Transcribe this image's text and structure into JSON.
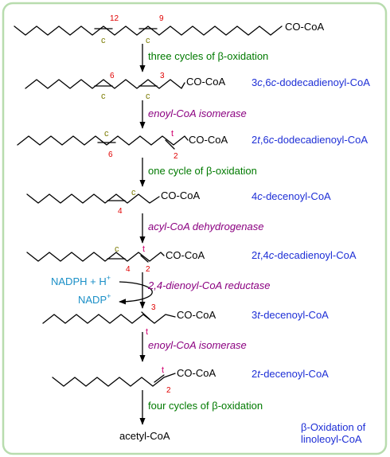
{
  "molecules": [
    {
      "coa": "CO-CoA",
      "numbers": [
        "12",
        "9"
      ],
      "marks": [
        "c",
        "c"
      ],
      "name": {
        "pre": "",
        "italic": "",
        "post": ""
      }
    },
    {
      "coa": "CO-CoA",
      "numbers": [
        "6",
        "3"
      ],
      "marks": [
        "c",
        "c"
      ],
      "name": {
        "pre": "3",
        "italic": "c",
        "mid": ",6",
        "italic2": "c",
        "post": "-dodecadienoyl-CoA"
      }
    },
    {
      "coa": "CO-CoA",
      "numbers": [
        "6",
        "2"
      ],
      "marks": [
        "c",
        "t"
      ],
      "name": {
        "pre": "2",
        "italic": "t",
        "mid": ",6",
        "italic2": "c",
        "post": "-dodecadienoyl-CoA"
      }
    },
    {
      "coa": "CO-CoA",
      "numbers": [
        "4"
      ],
      "marks": [
        "c"
      ],
      "name": {
        "pre": "4",
        "italic": "c",
        "mid": "",
        "italic2": "",
        "post": "-decenoyl-CoA"
      }
    },
    {
      "coa": "CO-CoA",
      "numbers": [
        "4",
        "2"
      ],
      "marks": [
        "c",
        "t"
      ],
      "name": {
        "pre": "2",
        "italic": "t",
        "mid": ",4",
        "italic2": "c",
        "post": "-decadienoyl-CoA"
      }
    },
    {
      "coa": "CO-CoA",
      "numbers": [
        "3"
      ],
      "marks": [
        "t"
      ],
      "name": {
        "pre": "3",
        "italic": "t",
        "mid": "",
        "italic2": "",
        "post": "-decenoyl-CoA"
      }
    },
    {
      "coa": "CO-CoA",
      "numbers": [
        "2"
      ],
      "marks": [
        "t"
      ],
      "name": {
        "pre": "2",
        "italic": "t",
        "mid": "",
        "italic2": "",
        "post": "-decenoyl-CoA"
      }
    }
  ],
  "steps": [
    {
      "pre": "three cycles of ",
      "greek": "β",
      "post": "-oxidation"
    },
    {
      "label": "enoyl-CoA isomerase"
    },
    {
      "pre": "one cycle of ",
      "greek": "β",
      "post": "-oxidation"
    },
    {
      "label": "acyl-CoA dehydrogenase"
    },
    {
      "label": "2,4-dienoyl-CoA reductase"
    },
    {
      "label": "enoyl-CoA isomerase"
    },
    {
      "pre": "four cycles of ",
      "greek": "β",
      "post": "-oxidation"
    }
  ],
  "cofactors": {
    "in_main": "NADPH + H",
    "in_sup": "+",
    "out_main": "NADP",
    "out_sup": "+"
  },
  "product": "acetyl-CoA",
  "caption": {
    "greek": "β",
    "line1": "-Oxidation of",
    "line2": "linoleoyl-CoA"
  },
  "colors": {
    "frame": "#b8dcae",
    "cis": "#7a7a00",
    "trans": "#d0006f",
    "position": "#e00000",
    "name": "#1e2fd6",
    "green_step": "#007a00",
    "purple_step": "#8b0080",
    "cofactor": "#1a8fc7"
  }
}
